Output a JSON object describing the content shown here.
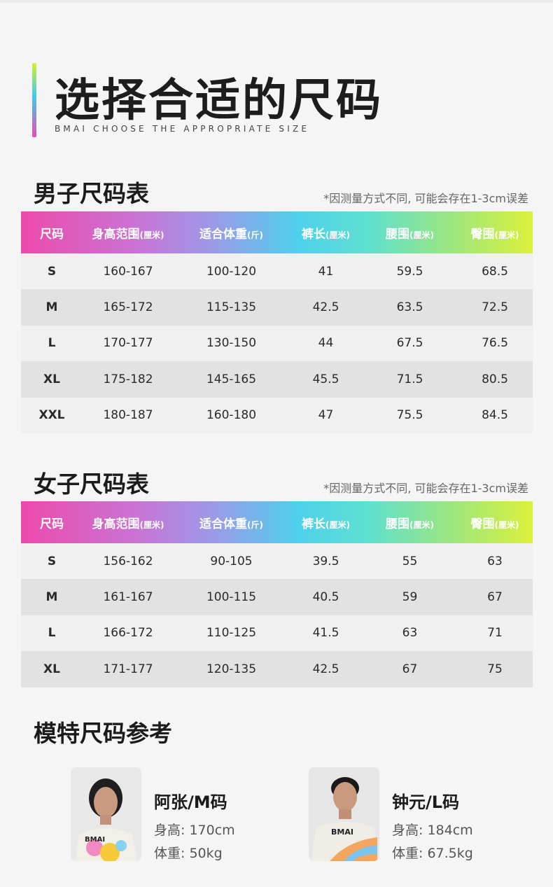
{
  "hero": {
    "title": "选择合适的尺码",
    "subtitle": "BMAI CHOOSE THE APPROPRIATE SIZE"
  },
  "men": {
    "title": "男子尺码表",
    "note": "*因测量方式不同, 可能会存在1-3cm误差",
    "headers": [
      {
        "main": "尺码",
        "unit": ""
      },
      {
        "main": "身高范围",
        "unit": "(厘米)"
      },
      {
        "main": "适合体重",
        "unit": "(斤)"
      },
      {
        "main": "裤长",
        "unit": "(厘米)"
      },
      {
        "main": "腰围",
        "unit": "(厘米)"
      },
      {
        "main": "臀围",
        "unit": "(厘米)"
      }
    ],
    "rows": [
      [
        "S",
        "160-167",
        "100-120",
        "41",
        "59.5",
        "68.5"
      ],
      [
        "M",
        "165-172",
        "115-135",
        "42.5",
        "63.5",
        "72.5"
      ],
      [
        "L",
        "170-177",
        "130-150",
        "44",
        "67.5",
        "76.5"
      ],
      [
        "XL",
        "175-182",
        "145-165",
        "45.5",
        "71.5",
        "80.5"
      ],
      [
        "XXL",
        "180-187",
        "160-180",
        "47",
        "75.5",
        "84.5"
      ]
    ]
  },
  "women": {
    "title": "女子尺码表",
    "note": "*因测量方式不同, 可能会存在1-3cm误差",
    "headers": [
      {
        "main": "尺码",
        "unit": ""
      },
      {
        "main": "身高范围",
        "unit": "(厘米)"
      },
      {
        "main": "适合体重",
        "unit": "(斤)"
      },
      {
        "main": "裤长",
        "unit": "(厘米)"
      },
      {
        "main": "腰围",
        "unit": "(厘米)"
      },
      {
        "main": "臀围",
        "unit": "(厘米)"
      }
    ],
    "rows": [
      [
        "S",
        "156-162",
        "90-105",
        "39.5",
        "55",
        "63"
      ],
      [
        "M",
        "161-167",
        "100-115",
        "40.5",
        "59",
        "67"
      ],
      [
        "L",
        "166-172",
        "110-125",
        "41.5",
        "63",
        "71"
      ],
      [
        "XL",
        "171-177",
        "120-135",
        "42.5",
        "67",
        "75"
      ]
    ]
  },
  "models": {
    "title": "模特尺码参考",
    "items": [
      {
        "name": "阿张/M码",
        "height": "身高: 170cm",
        "weight": "体重: 50kg"
      },
      {
        "name": "钟元/L码",
        "height": "身高: 184cm",
        "weight": "体重: 67.5kg"
      }
    ]
  },
  "colors": {
    "gradient_pink": "#ec4aab",
    "gradient_cyan": "#4fd0ec",
    "gradient_lime": "#dcf03a"
  }
}
